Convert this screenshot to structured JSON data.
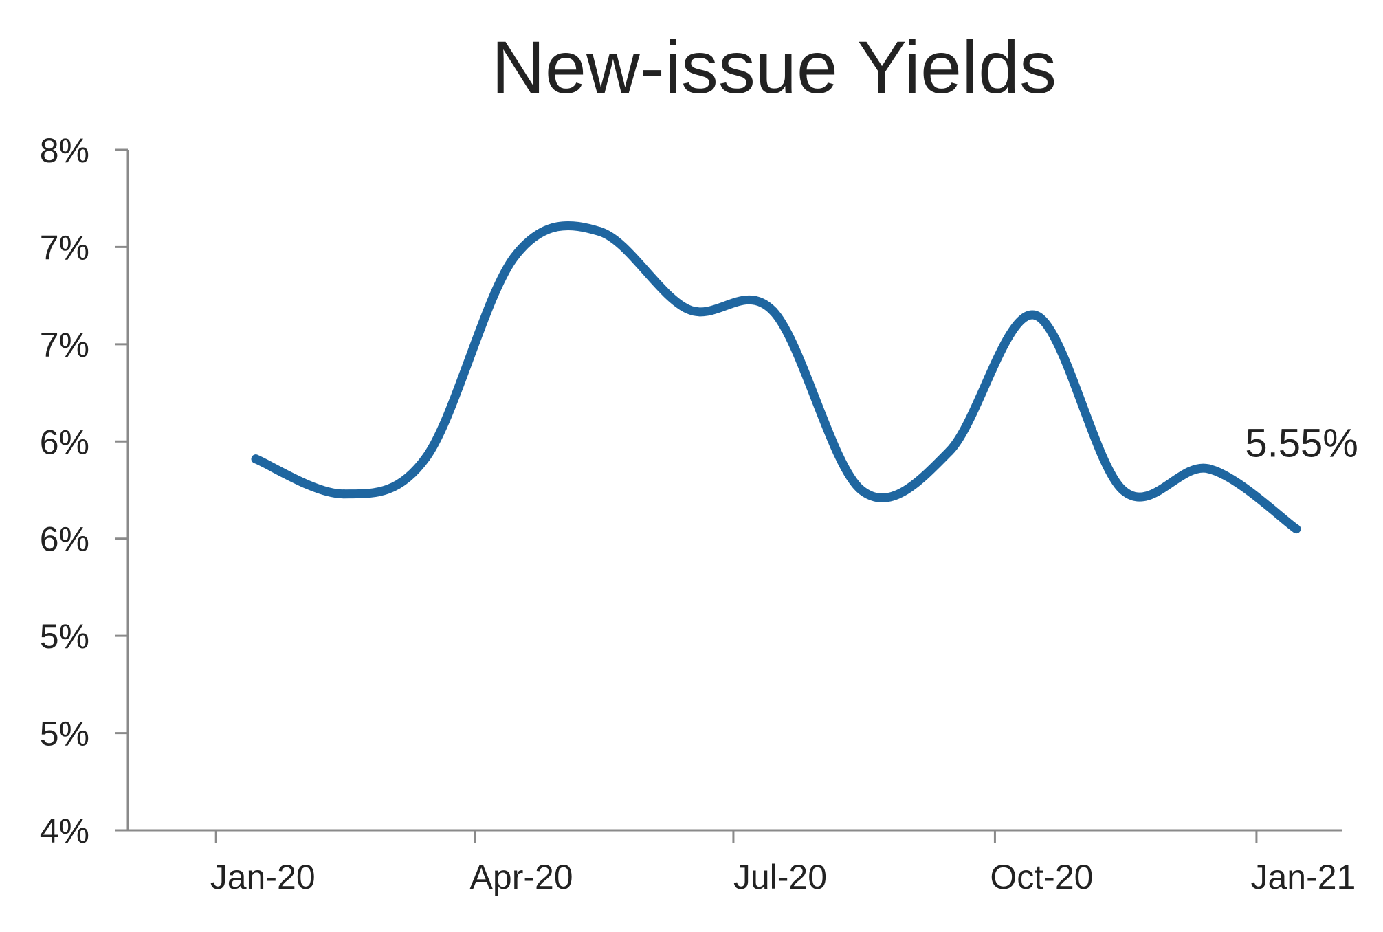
{
  "chart_data": {
    "type": "line",
    "title": "New-issue Yields",
    "xlabel": "",
    "ylabel": "",
    "x_tick_labels": [
      "Jan-20",
      "Apr-20",
      "Jul-20",
      "Oct-20",
      "Jan-21"
    ],
    "x_tick_dates": [
      "2020-01-01",
      "2020-04-01",
      "2020-07-01",
      "2020-10-01",
      "2021-01-01"
    ],
    "x_range": [
      "2019-12-01",
      "2021-01-31"
    ],
    "ylim": [
      4.0,
      7.5
    ],
    "y_ticks": [
      4.0,
      4.5,
      5.0,
      5.5,
      6.0,
      6.5,
      7.0,
      7.5
    ],
    "y_tick_labels": [
      "4%",
      "5%",
      "5%",
      "6%",
      "6%",
      "7%",
      "7%",
      "8%"
    ],
    "grid": false,
    "legend": "none",
    "series": [
      {
        "x": [
          "2020-01-15",
          "2020-02-15",
          "2020-03-15",
          "2020-04-15",
          "2020-05-15",
          "2020-06-15",
          "2020-07-15",
          "2020-08-15",
          "2020-09-15",
          "2020-10-15",
          "2020-11-15",
          "2020-12-15",
          "2021-01-15"
        ],
        "values": [
          5.91,
          5.73,
          5.92,
          6.95,
          7.08,
          6.68,
          6.67,
          5.75,
          5.95,
          6.65,
          5.75,
          5.86,
          5.55
        ],
        "color": "#1f66a0"
      }
    ],
    "annotations": [
      {
        "text": "5.55%",
        "x": "2021-01-15",
        "y": 5.55
      }
    ]
  }
}
